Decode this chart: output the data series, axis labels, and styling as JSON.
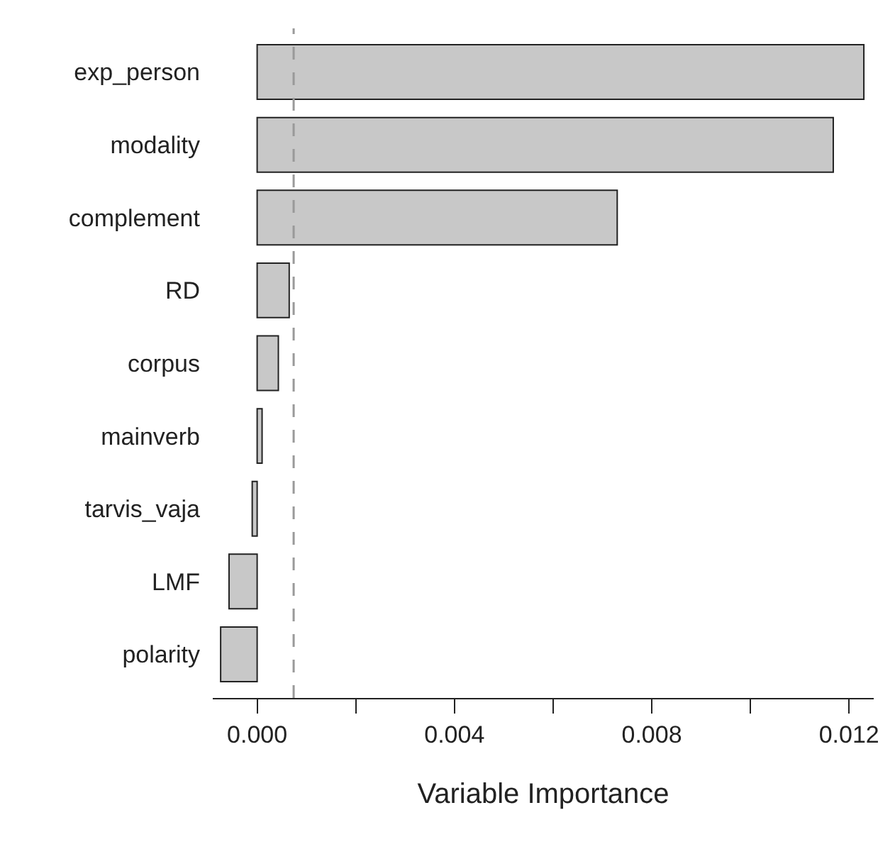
{
  "chart_data": {
    "type": "bar",
    "orientation": "horizontal",
    "xlabel": "Variable Importance",
    "categories": [
      "exp_person",
      "modality",
      "complement",
      "RD",
      "corpus",
      "mainverb",
      "tarvis_vaja",
      "LMF",
      "polarity"
    ],
    "values": [
      0.0123,
      0.01168,
      0.0073,
      0.00065,
      0.00043,
      0.0001,
      -0.0001,
      -0.00057,
      -0.00074
    ],
    "color": "#c8c8c8",
    "xlim": [
      -0.0009,
      0.0125
    ],
    "xticks": [
      {
        "value": 0,
        "label": "0.000"
      },
      {
        "value": 0.002,
        "label": null
      },
      {
        "value": 0.004,
        "label": "0.004"
      },
      {
        "value": 0.006,
        "label": null
      },
      {
        "value": 0.008,
        "label": "0.008"
      },
      {
        "value": 0.01,
        "label": null
      },
      {
        "value": 0.012,
        "label": "0.012"
      }
    ],
    "ref_lines": [
      {
        "axis": "x",
        "value": 0.00074,
        "color": "#999999",
        "line_style": "dashed"
      }
    ],
    "grid": false,
    "legend": false
  }
}
